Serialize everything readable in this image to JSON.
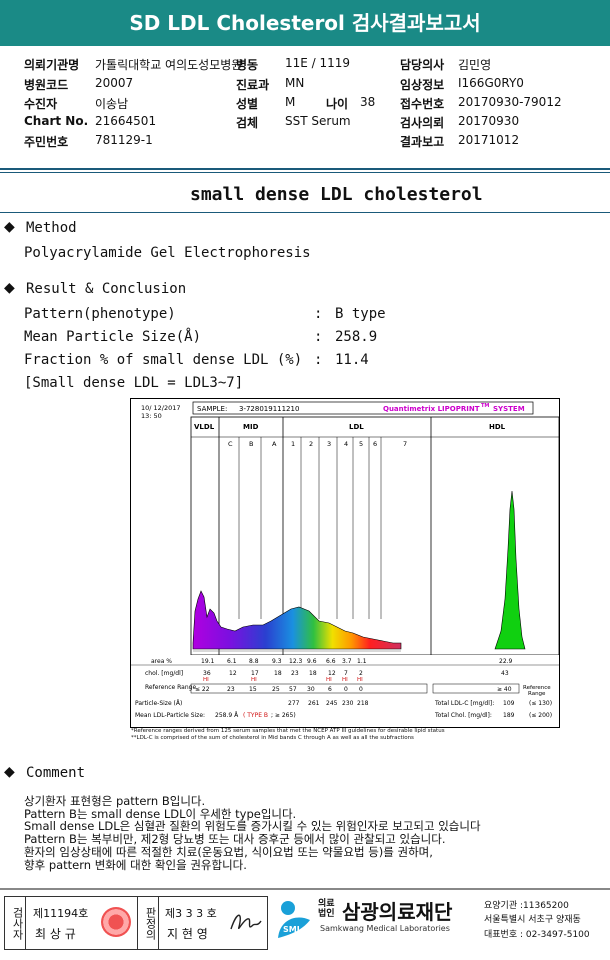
{
  "header": {
    "title": "SD LDL Cholesterol 검사결과보고서"
  },
  "patient_info": {
    "row1": {
      "k1": "의뢰기관명",
      "v1": "가톨릭대학교 여의도성모병원",
      "k2": "병동",
      "v2": "11E / 1119",
      "k3": "담당의사",
      "v3": "김민영"
    },
    "row2": {
      "k1": "병원코드",
      "v1": "20007",
      "k2": "진료과",
      "v2": "MN",
      "k3": "임상정보",
      "v3": "I166G0RY0"
    },
    "row3": {
      "k1": "수진자",
      "v1": "이송남",
      "k2": "성별",
      "v2": "M",
      "k2b": "나이",
      "v2b": "38",
      "k3": "접수번호",
      "v3": "20170930-79012"
    },
    "row4": {
      "k1": "Chart No.",
      "v1": "21664501",
      "k2": "검체",
      "v2": "SST Serum",
      "k3": "검사의뢰",
      "v3": "20170930"
    },
    "row5": {
      "k1": "주민번호",
      "v1": "781129-1",
      "k3": "결과보고",
      "v3": "20171012"
    }
  },
  "subtitle": "small dense LDL cholesterol",
  "method": {
    "heading": "Method",
    "text": "Polyacrylamide Gel Electrophoresis"
  },
  "result": {
    "heading": "Result & Conclusion",
    "rows": [
      {
        "label": "Pattern(phenotype)",
        "value": "B type"
      },
      {
        "label": "Mean Particle Size(Å)",
        "value": "258.9"
      },
      {
        "label": "Fraction % of small dense LDL (%)",
        "value": "11.4"
      }
    ],
    "note": "[Small dense LDL = LDL3~7]"
  },
  "chart": {
    "date": "10/ 12/2017",
    "time": "13: 50",
    "sample_label": "SAMPLE:",
    "sample_id": "3-728019111210",
    "brand": "Quantimetrix LIPOPRINT",
    "brand_sup": "TM",
    "brand_suffix": "SYSTEM",
    "bands": [
      "VLDL",
      "MID",
      "LDL",
      "HDL"
    ],
    "sub_bands": [
      "C",
      "B",
      "A",
      "1",
      "2",
      "3",
      "4",
      "5",
      "6",
      "7"
    ],
    "row_labels": {
      "area": "area %",
      "chol": "chol. [mg/dl]",
      "ref": "Reference Range",
      "size": "Particle-Size (Å)",
      "mean": "Mean LDL-Particle Size:"
    },
    "area_values": [
      "19.1",
      "6.1",
      "8.8",
      "9.3",
      "12.3",
      "9.6",
      "6.6",
      "3.7",
      "1.1"
    ],
    "hdl_area": "22.9",
    "chol_values": [
      "36",
      "12",
      "17",
      "18",
      "23",
      "18",
      "12",
      "7",
      "2"
    ],
    "hdl_chol": "43",
    "hi_flags": [
      "HI",
      "",
      "HI",
      "",
      "",
      "",
      "HI",
      "HI",
      "HI"
    ],
    "ref_values": [
      "≤ 22",
      "23",
      "15",
      "25",
      "57",
      "30",
      "6",
      "0",
      "0"
    ],
    "hdl_ref": "≥ 40",
    "hdl_ref_label": "Reference Range",
    "size_values": [
      "277",
      "261",
      "245",
      "230",
      "218"
    ],
    "total_ldl_label": "Total LDL-C [mg/dl]:",
    "total_ldl": "109",
    "total_ldl_ref": "(≤ 130)",
    "total_chol_label": "Total Chol. [mg/dl]:",
    "total_chol": "189",
    "total_chol_ref": "(≤ 200)",
    "mean_size": "258.9 Å",
    "mean_type": "( TYPE B",
    "mean_ref": "; ≥ 265)",
    "footnote1": "*Reference ranges derived from 125 serum samples that met the NCEP ATP III guidelines for desirable lipid status",
    "footnote2": "**LDL-C is comprised of the sum of cholesterol in Mid bands C through A as well as all the subfractions"
  },
  "comment": {
    "heading": "Comment",
    "lines": [
      "상기환자 표현형은 pattern B입니다.",
      "Pattern B는 small dense LDL이 우세한 type입니다.",
      "Small dense LDL은 심혈관 질환의 위험도를 증가시킬 수 있는 위험인자로 보고되고 있습니다",
      "Pattern B는 복부비만, 제2형 당뇨병 또는 대사 증후군 등에서 많이 관찰되고 있습니다.",
      "환자의 임상상태에 따른 적절한 치료(운동요법, 식이요법 또는 약물요법 등)를 권하며,",
      "향후 pattern 변화에 대한 확인을 권유합니다."
    ]
  },
  "footer": {
    "box1_label": "검사자",
    "box1_no": "제11194호",
    "box1_name": "최 상 규",
    "box2_label": "판정의",
    "box2_no": "제3 3 3 호",
    "box2_name": "지 현 영",
    "org_prefix": "의료법인",
    "org_name": "삼광의료재단",
    "org_en": "Samkwang Medical Laboratories",
    "logo_text": "SML",
    "code_line": "요양기관 :11365200",
    "address": "서울특별시 서초구 양재동",
    "phone": "대표번호 : 02-3497-5100"
  },
  "colors": {
    "header_bg": "#1a8a86",
    "hi_red": "#d01010",
    "brand_magenta": "#cc00cc"
  }
}
